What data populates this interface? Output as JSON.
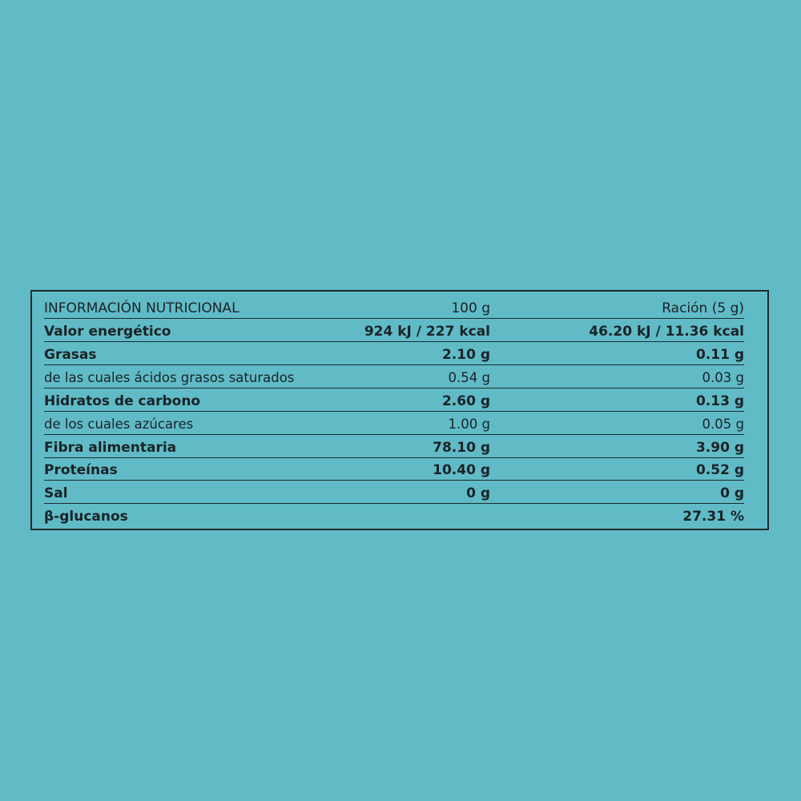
{
  "panel": {
    "background_color": "#60bbc7",
    "border_color": "#1d2a2d",
    "text_color": "#1a2326"
  },
  "header": {
    "label": "INFORMACIÓN NUTRICIONAL",
    "col_100g": "100 g",
    "col_racion": "Ración (5 g)"
  },
  "rows": [
    {
      "label": "Valor energético",
      "per_100g": "924 kJ / 227 kcal",
      "per_racion": "46.20 kJ / 11.36 kcal"
    },
    {
      "label": "Grasas",
      "per_100g": "2.10 g",
      "per_racion": "0.11 g"
    },
    {
      "label": "de las cuales ácidos grasos saturados",
      "per_100g": "0.54 g",
      "per_racion": "0.03 g"
    },
    {
      "label": "Hidratos de carbono",
      "per_100g": "2.60 g",
      "per_racion": "0.13 g"
    },
    {
      "label": "de los cuales azúcares",
      "per_100g": "1.00 g",
      "per_racion": "0.05 g"
    },
    {
      "label": "Fibra alimentaria",
      "per_100g": "78.10 g",
      "per_racion": "3.90 g"
    },
    {
      "label": "Proteínas",
      "per_100g": "10.40 g",
      "per_racion": "0.52 g"
    },
    {
      "label": "Sal",
      "per_100g": "0 g",
      "per_racion": "0 g"
    },
    {
      "label": "β-glucanos",
      "per_100g": "",
      "per_racion": "27.31 %"
    }
  ]
}
